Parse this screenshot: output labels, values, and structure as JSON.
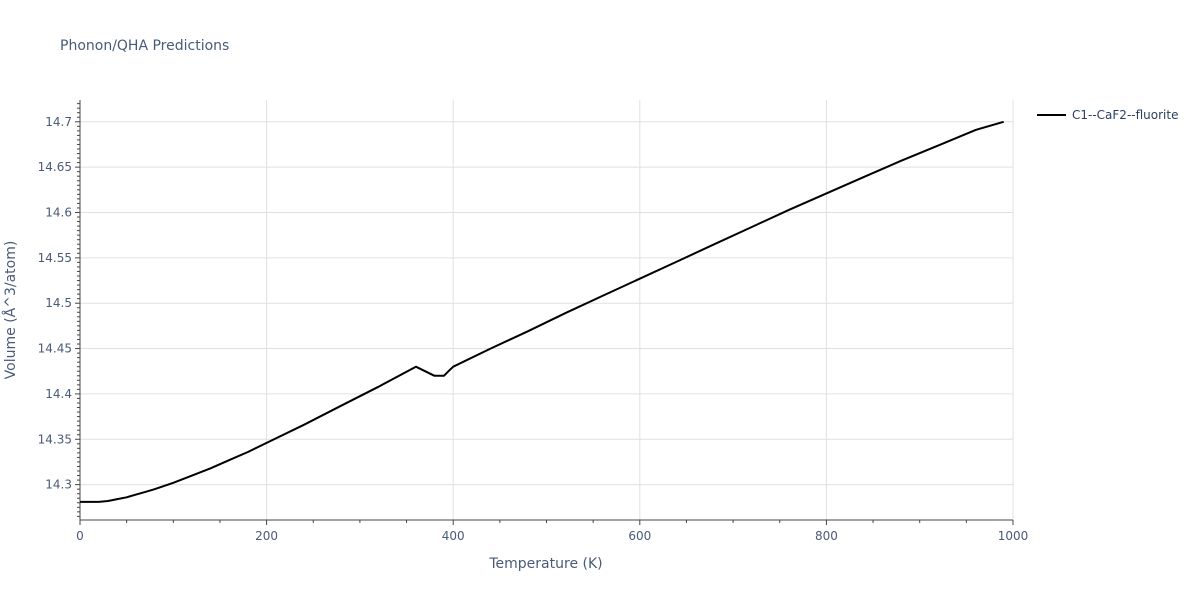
{
  "title": "Phonon/QHA Predictions",
  "chart_data": {
    "type": "line",
    "xlabel": "Temperature (K)",
    "ylabel": "Volume (Å^3/atom)",
    "xlim": [
      0,
      1000
    ],
    "ylim": [
      14.261,
      14.724
    ],
    "x_ticks": [
      0,
      200,
      400,
      600,
      800,
      1000
    ],
    "y_ticks": [
      14.3,
      14.35,
      14.4,
      14.45,
      14.5,
      14.55,
      14.6,
      14.65,
      14.7
    ],
    "grid": true,
    "legend_position": "top-right",
    "series": [
      {
        "name": "C1--CaF2--fluorite",
        "color": "#000000",
        "x": [
          0,
          10,
          20,
          30,
          40,
          50,
          60,
          70,
          80,
          100,
          120,
          140,
          160,
          180,
          200,
          240,
          280,
          320,
          360,
          380,
          390,
          395,
          400,
          440,
          480,
          520,
          560,
          600,
          640,
          680,
          720,
          760,
          800,
          840,
          880,
          920,
          960,
          990
        ],
        "y": [
          14.281,
          14.281,
          14.281,
          14.282,
          14.284,
          14.286,
          14.289,
          14.292,
          14.295,
          14.302,
          14.31,
          14.318,
          14.327,
          14.336,
          14.346,
          14.366,
          14.387,
          14.408,
          14.43,
          14.42,
          14.42,
          14.425,
          14.43,
          14.45,
          14.469,
          14.489,
          14.508,
          14.527,
          14.546,
          14.565,
          14.584,
          14.603,
          14.621,
          14.639,
          14.657,
          14.674,
          14.691,
          14.7
        ]
      }
    ]
  }
}
